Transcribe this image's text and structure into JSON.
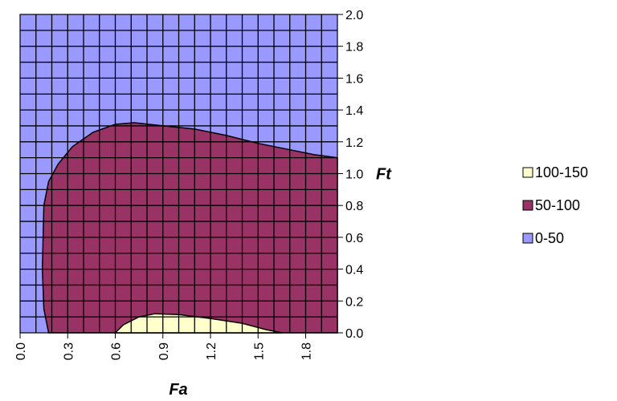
{
  "chart_data": {
    "type": "contour",
    "xlabel": "Fa",
    "ylabel": "Ft",
    "xlim": [
      0.0,
      2.0
    ],
    "ylim": [
      0.0,
      2.0
    ],
    "x_ticks": [
      "0.0",
      "0.3",
      "0.6",
      "0.9",
      "1.2",
      "1.5",
      "1.8"
    ],
    "y_ticks": [
      "0.0",
      "0.2",
      "0.4",
      "0.6",
      "0.8",
      "1.0",
      "1.2",
      "1.4",
      "1.6",
      "1.8",
      "2.0"
    ],
    "grid": true,
    "grid_step": 0.1,
    "legend_position": "right",
    "bands": [
      {
        "name": "100-150",
        "color": "#ffffcc"
      },
      {
        "name": "50-100",
        "color": "#993366"
      },
      {
        "name": "0-50",
        "color": "#9999ff"
      }
    ],
    "contours": {
      "50": [
        [
          0.18,
          0.0
        ],
        [
          0.15,
          0.15
        ],
        [
          0.14,
          0.4
        ],
        [
          0.15,
          0.8
        ],
        [
          0.18,
          0.95
        ],
        [
          0.24,
          1.06
        ],
        [
          0.33,
          1.17
        ],
        [
          0.46,
          1.26
        ],
        [
          0.6,
          1.31
        ],
        [
          0.72,
          1.32
        ],
        [
          0.9,
          1.3
        ],
        [
          1.1,
          1.28
        ],
        [
          1.3,
          1.24
        ],
        [
          1.5,
          1.19
        ],
        [
          1.7,
          1.15
        ],
        [
          1.85,
          1.12
        ],
        [
          2.0,
          1.1
        ]
      ],
      "100": [
        [
          0.6,
          0.0
        ],
        [
          0.65,
          0.05
        ],
        [
          0.75,
          0.1
        ],
        [
          0.85,
          0.12
        ],
        [
          1.0,
          0.115
        ],
        [
          1.2,
          0.09
        ],
        [
          1.4,
          0.06
        ],
        [
          1.55,
          0.02
        ],
        [
          1.65,
          0.0
        ]
      ]
    }
  }
}
